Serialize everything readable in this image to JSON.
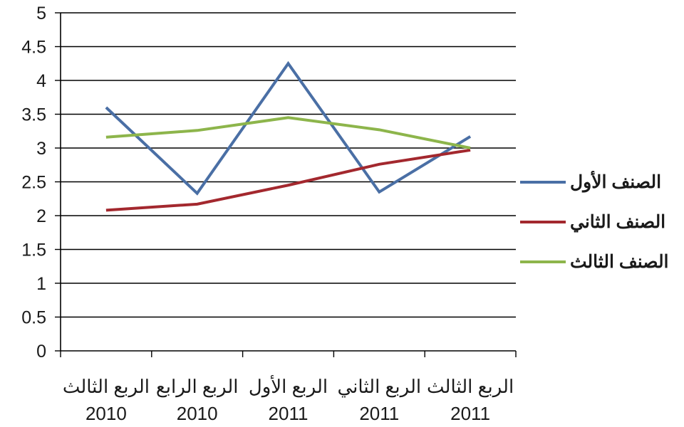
{
  "chart_data": {
    "type": "line",
    "categories": [
      [
        "الربع الثالث",
        "2010"
      ],
      [
        "الربع الرابع",
        "2010"
      ],
      [
        "الربع الأول",
        "2011"
      ],
      [
        "الربع الثاني",
        "2011"
      ],
      [
        "الربع الثالث",
        "2011"
      ]
    ],
    "series": [
      {
        "name": "الصنف الأول",
        "color": "#4a6fa5",
        "values": [
          3.6,
          2.33,
          4.25,
          2.35,
          3.17
        ]
      },
      {
        "name": "الصنف الثاني",
        "color": "#a3282e",
        "values": [
          2.08,
          2.17,
          2.45,
          2.76,
          2.97
        ]
      },
      {
        "name": "الصنف الثالث",
        "color": "#8db54b",
        "values": [
          3.16,
          3.26,
          3.45,
          3.27,
          3.0
        ]
      }
    ],
    "ylim": [
      0,
      5
    ],
    "yticks": [
      "0",
      "0.5",
      "1",
      "1.5",
      "2",
      "2.5",
      "3",
      "3.5",
      "4",
      "4.5",
      "5"
    ],
    "grid": true,
    "legend_position": "right"
  }
}
